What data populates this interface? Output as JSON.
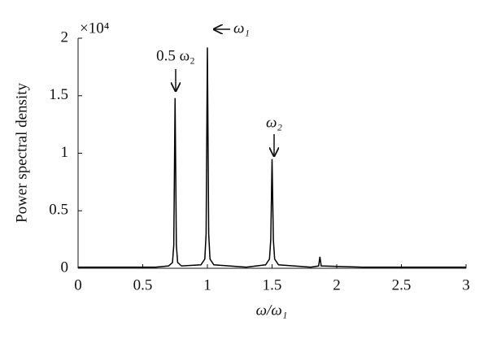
{
  "chart_data": {
    "type": "line",
    "ylabel": "Power spectral density",
    "xlabel": "ω/ω₁",
    "multiplier": "×10⁴",
    "annotations": [
      "0.5 ω₂",
      "ω₁",
      "ω₂"
    ],
    "x": [
      0,
      0.3,
      0.6,
      0.7,
      0.73,
      0.74,
      0.75,
      0.76,
      0.77,
      0.8,
      0.95,
      0.98,
      0.99,
      1.0,
      1.01,
      1.02,
      1.05,
      1.3,
      1.45,
      1.48,
      1.49,
      1.5,
      1.51,
      1.52,
      1.55,
      1.8,
      1.86,
      1.87,
      1.88,
      2.2,
      2.5,
      3
    ],
    "series": [
      {
        "color": "#000000",
        "values": [
          0.01,
          0.01,
          0.01,
          0.02,
          0.05,
          0.2,
          1.48,
          0.2,
          0.05,
          0.02,
          0.03,
          0.08,
          0.3,
          1.92,
          0.3,
          0.08,
          0.03,
          0.01,
          0.03,
          0.08,
          0.25,
          0.95,
          0.25,
          0.08,
          0.03,
          0.01,
          0.02,
          0.1,
          0.02,
          0.01,
          0.01,
          0.01
        ]
      }
    ],
    "xlim": [
      0,
      3
    ],
    "xticks": [
      0,
      0.5,
      1,
      1.5,
      2,
      2.5,
      3
    ],
    "ylim": [
      0,
      2
    ],
    "yticks": [
      0,
      0.5,
      1,
      1.5,
      2
    ]
  }
}
